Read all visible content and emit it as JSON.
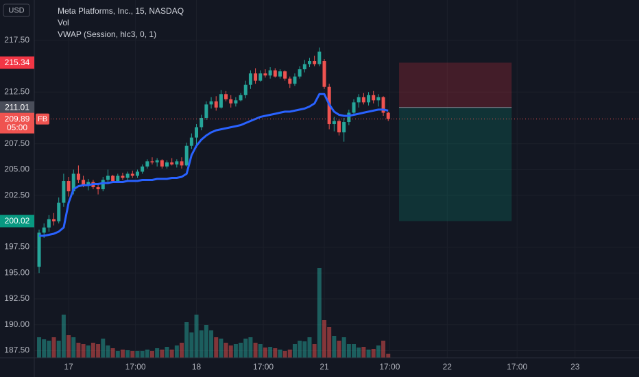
{
  "chart_data": {
    "type": "candlestick",
    "title": "Meta Platforms, Inc., 15, NASDAQ",
    "currency": "USD",
    "symbol": "FB",
    "countdown": "05:00",
    "up_color": "#26a69a",
    "down_color": "#ef5350",
    "grid": true,
    "open": [
      195.6,
      198.9,
      199.4,
      200.2,
      200.0,
      201.8,
      203.9,
      202.9,
      204.6,
      204.0,
      203.5,
      203.8,
      203.3,
      203.1,
      204.0,
      204.4,
      203.9,
      204.4,
      204.2,
      204.6,
      204.4,
      204.8,
      205.3,
      205.8,
      205.7,
      205.9,
      205.3,
      205.7,
      205.5,
      205.8,
      205.4,
      207.3,
      208.1,
      209.1,
      210.0,
      211.3,
      211.6,
      211.0,
      212.3,
      211.8,
      211.4,
      211.7,
      212.2,
      213.2,
      214.3,
      213.6,
      214.3,
      214.1,
      214.6,
      214.0,
      214.5,
      213.8,
      213.3,
      214.0,
      214.7,
      215.2,
      215.5,
      215.2,
      215.5,
      213.0,
      209.4,
      209.7,
      208.6,
      209.6,
      210.5,
      211.5,
      212.0,
      211.5,
      212.2,
      211.7,
      212.0,
      210.5
    ],
    "high": [
      199.2,
      199.8,
      200.6,
      200.8,
      202.3,
      204.6,
      204.3,
      205.0,
      205.4,
      204.4,
      204.1,
      204.0,
      203.6,
      204.3,
      205.0,
      204.5,
      204.6,
      204.7,
      204.8,
      204.9,
      205.0,
      205.5,
      206.0,
      206.2,
      206.1,
      206.0,
      205.9,
      206.1,
      206.0,
      206.2,
      207.6,
      208.5,
      209.4,
      210.3,
      211.6,
      212.0,
      212.1,
      212.7,
      212.6,
      212.2,
      212.0,
      212.4,
      213.6,
      214.6,
      214.8,
      214.6,
      214.7,
      214.9,
      214.8,
      214.7,
      214.6,
      214.0,
      214.3,
      215.0,
      215.6,
      215.8,
      216.0,
      216.8,
      215.7,
      213.3,
      210.1,
      209.9,
      210.0,
      210.8,
      211.8,
      212.3,
      212.4,
      212.5,
      212.6,
      212.3,
      212.1,
      210.6
    ],
    "low": [
      195.0,
      198.4,
      199.0,
      199.6,
      199.8,
      201.4,
      202.4,
      202.6,
      203.7,
      203.3,
      203.0,
      203.1,
      202.6,
      202.9,
      203.8,
      203.7,
      203.8,
      204.0,
      204.0,
      204.2,
      204.2,
      204.6,
      205.1,
      205.5,
      205.3,
      205.1,
      205.1,
      205.4,
      205.2,
      205.1,
      205.3,
      207.0,
      207.1,
      208.8,
      209.8,
      210.9,
      210.7,
      210.9,
      211.6,
      211.0,
      211.1,
      211.6,
      211.9,
      212.8,
      213.3,
      213.5,
      213.9,
      213.8,
      213.9,
      213.8,
      213.6,
      212.9,
      213.1,
      213.8,
      214.4,
      214.9,
      215.0,
      215.0,
      212.8,
      208.9,
      208.7,
      208.3,
      207.7,
      209.3,
      210.3,
      211.0,
      211.3,
      211.2,
      211.4,
      211.1,
      210.2,
      209.7
    ],
    "close": [
      198.9,
      199.4,
      200.2,
      200.0,
      201.8,
      203.9,
      202.9,
      204.6,
      204.0,
      203.5,
      203.8,
      203.3,
      203.1,
      204.0,
      204.4,
      203.9,
      204.4,
      204.2,
      204.6,
      204.4,
      204.8,
      205.3,
      205.8,
      205.7,
      205.9,
      205.3,
      205.7,
      205.5,
      205.8,
      205.4,
      207.3,
      208.1,
      209.1,
      210.0,
      211.3,
      211.6,
      211.0,
      212.3,
      211.8,
      211.4,
      211.7,
      212.2,
      213.2,
      214.3,
      213.6,
      214.3,
      214.1,
      214.6,
      214.0,
      214.5,
      213.8,
      213.3,
      214.0,
      214.7,
      215.2,
      215.5,
      215.2,
      216.4,
      213.0,
      209.4,
      209.7,
      208.6,
      209.6,
      210.5,
      211.5,
      212.0,
      211.5,
      212.2,
      211.7,
      212.0,
      210.5,
      209.89
    ],
    "volume": {
      "name": "Vol",
      "values": [
        30,
        27,
        25,
        30,
        25,
        63,
        33,
        30,
        22,
        20,
        18,
        22,
        20,
        28,
        18,
        14,
        10,
        12,
        11,
        10,
        10,
        10,
        12,
        10,
        14,
        12,
        16,
        12,
        18,
        22,
        52,
        37,
        63,
        40,
        48,
        40,
        30,
        28,
        22,
        18,
        20,
        22,
        28,
        30,
        22,
        20,
        15,
        16,
        14,
        12,
        10,
        12,
        20,
        25,
        24,
        30,
        20,
        131,
        55,
        45,
        32,
        25,
        30,
        20,
        20,
        15,
        16,
        12,
        13,
        18,
        25,
        6
      ]
    },
    "vwap": {
      "name": "VWAP (Session, hlc3, 0, 1)",
      "color": "#2962ff",
      "values": [
        198.6,
        198.6,
        198.7,
        198.8,
        199.0,
        199.4,
        201.8,
        203.1,
        203.4,
        203.5,
        203.5,
        203.6,
        203.6,
        203.7,
        203.7,
        203.8,
        203.8,
        203.8,
        203.9,
        203.9,
        203.9,
        204.0,
        204.0,
        204.0,
        204.1,
        204.1,
        204.1,
        204.2,
        204.2,
        204.3,
        204.6,
        206.4,
        207.3,
        207.9,
        208.3,
        208.6,
        208.8,
        208.9,
        209.0,
        209.1,
        209.2,
        209.3,
        209.5,
        209.7,
        209.9,
        210.1,
        210.2,
        210.3,
        210.4,
        210.5,
        210.6,
        210.6,
        210.7,
        210.8,
        210.9,
        211.1,
        211.4,
        212.3,
        212.3,
        211.3,
        210.6,
        210.3,
        210.2,
        210.2,
        210.3,
        210.4,
        210.5,
        210.6,
        210.7,
        210.8,
        210.8,
        210.7
      ]
    },
    "position": {
      "stop": 215.34,
      "entry": 211.01,
      "target": 200.02,
      "start": 73.2,
      "end": 96.1
    },
    "ylim": [
      186.8,
      221.4
    ],
    "yticks": [
      {
        "value": 187.5,
        "label": "187.50"
      },
      {
        "value": 190,
        "label": "190.00"
      },
      {
        "value": 192.5,
        "label": "192.50"
      },
      {
        "value": 195,
        "label": "195.00"
      },
      {
        "value": 197.5,
        "label": "197.50"
      },
      {
        "value": 202.5,
        "label": "202.50"
      },
      {
        "value": 205,
        "label": "205.00"
      },
      {
        "value": 207.5,
        "label": "207.50"
      },
      {
        "value": 212.5,
        "label": "212.50"
      },
      {
        "value": 217.5,
        "label": "217.50"
      }
    ],
    "xlim": [
      -0.98,
      122
    ],
    "xticks": [
      {
        "value": 6,
        "label": "17"
      },
      {
        "value": 19.6,
        "label": "17:00"
      },
      {
        "value": 32,
        "label": "18"
      },
      {
        "value": 45.6,
        "label": "17:00"
      },
      {
        "value": 58,
        "label": "21"
      },
      {
        "value": 71.3,
        "label": "17:00"
      },
      {
        "value": 83,
        "label": "22"
      },
      {
        "value": 97.2,
        "label": "17:00"
      },
      {
        "value": 109,
        "label": "23"
      }
    ]
  }
}
